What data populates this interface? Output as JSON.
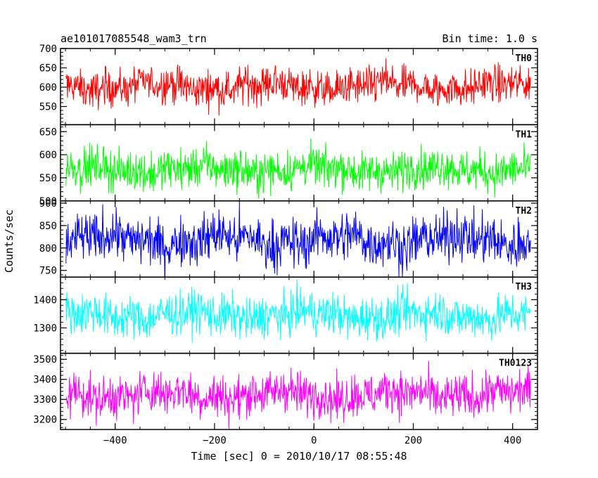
{
  "header": {
    "title": "ae101017085548_wam3_trn",
    "bin_time": "Bin time: 1.0 s"
  },
  "chart_data": {
    "type": "line",
    "shared_x": {
      "label": "Time [sec] 0 = 2010/10/17 08:55:48",
      "range": [
        -510,
        450
      ],
      "ticks": [
        -400,
        -200,
        0,
        200,
        400
      ],
      "tick_labels": [
        "−400",
        "−200",
        "0",
        "200",
        "400"
      ],
      "data_range": [
        -499,
        436
      ]
    },
    "ylabel": "Counts/sec",
    "panels": [
      {
        "name": "TH0",
        "color": "#ff0000",
        "ylim": [
          503,
          700
        ],
        "yticks": [
          550,
          600,
          650,
          700
        ],
        "ytick_labels": [
          "550",
          "600",
          "650",
          "700"
        ],
        "mean": 602,
        "noise_sd": 24,
        "slow_amp": 8
      },
      {
        "name": "TH1",
        "color": "#00ff00",
        "ylim": [
          500,
          665
        ],
        "yticks": [
          500,
          550,
          600,
          650
        ],
        "ytick_labels": [
          "500",
          "550",
          "600",
          "650"
        ],
        "mean": 568,
        "noise_sd": 22,
        "slow_amp": 6
      },
      {
        "name": "TH2",
        "color": "#0000ff",
        "ylim": [
          735,
          905
        ],
        "yticks": [
          750,
          800,
          850,
          900
        ],
        "ytick_labels": [
          "750",
          "800",
          "850",
          "900"
        ],
        "mean": 818,
        "noise_sd": 28,
        "slow_amp": 10
      },
      {
        "name": "TH3",
        "color": "#00ffff",
        "ylim": [
          1210,
          1480
        ],
        "yticks": [
          1300,
          1400
        ],
        "ytick_labels": [
          "1300",
          "1400"
        ],
        "mean": 1345,
        "noise_sd": 38,
        "slow_amp": 12
      },
      {
        "name": "TH0123",
        "color": "#ff00ff",
        "ylim": [
          3150,
          3530
        ],
        "yticks": [
          3200,
          3300,
          3400,
          3500
        ],
        "ytick_labels": [
          "3200",
          "3300",
          "3400",
          "3500"
        ],
        "mean": 3325,
        "noise_sd": 55,
        "slow_amp": 18
      }
    ]
  }
}
